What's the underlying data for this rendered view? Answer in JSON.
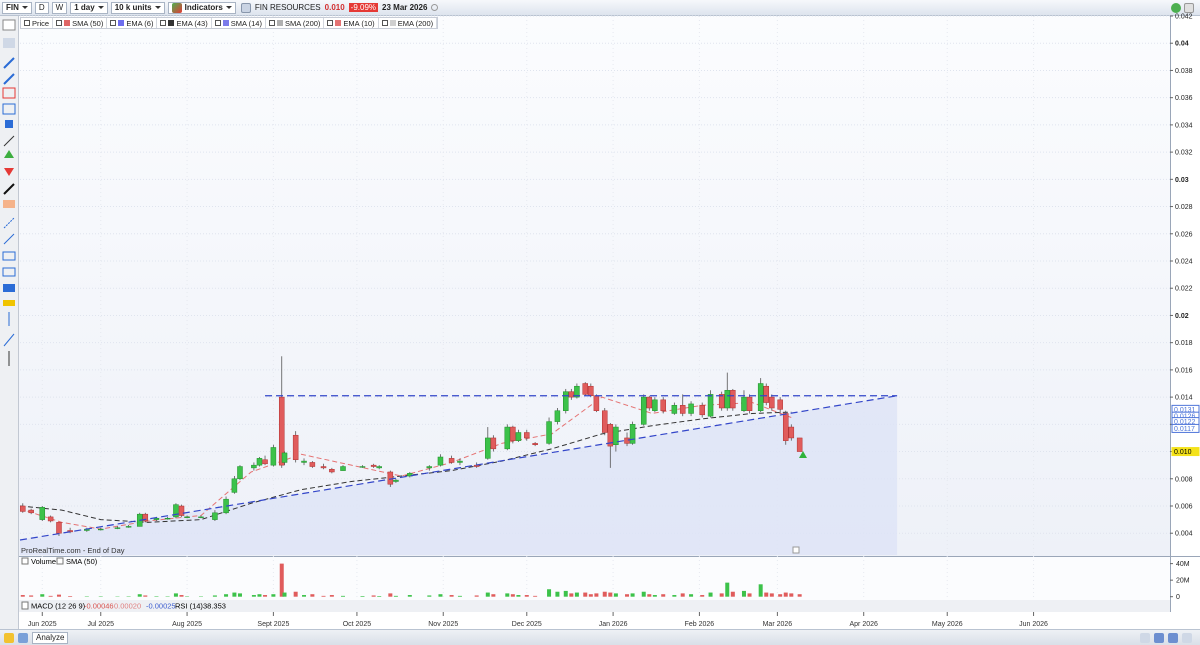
{
  "header": {
    "symbol": "FIN",
    "period_d": "D",
    "period_w": "W",
    "interval": "1 day",
    "units": "10 k units",
    "indicators_button": "Indicators",
    "name": "FIN RESOURCES",
    "price": "0.010",
    "change": "-9.09%",
    "date": "23 Mar 2026"
  },
  "watermark": "ProRealTime.com - End of Day",
  "volume_panel": {
    "title": "Volume",
    "indicator": "SMA (50)"
  },
  "indicator_bar": {
    "macd": "MACD (12 26 9)",
    "macd_values": [
      "-0.00046",
      "0.00020",
      "-0.00025"
    ],
    "rsi": "RSI (14)",
    "rsi_value": "38.353"
  },
  "footer": {
    "analyze": "Analyze"
  },
  "chart_data": {
    "type": "candlestick",
    "legend_price": "Price",
    "up_color": "#3cc24a",
    "down_color": "#e05c5c",
    "grid": true,
    "x": [
      "2025-06-17",
      "2025-06-20",
      "2025-06-24",
      "2025-06-27",
      "2025-06-30",
      "2025-07-04",
      "2025-07-10",
      "2025-07-15",
      "2025-07-21",
      "2025-07-25",
      "2025-07-29",
      "2025-07-31",
      "2025-08-04",
      "2025-08-08",
      "2025-08-11",
      "2025-08-13",
      "2025-08-15",
      "2025-08-20",
      "2025-08-25",
      "2025-08-29",
      "2025-09-01",
      "2025-09-03",
      "2025-09-08",
      "2025-09-10",
      "2025-09-12",
      "2025-09-15",
      "2025-09-18",
      "2025-09-19",
      "2025-09-23",
      "2025-09-26",
      "2025-09-29",
      "2025-10-03",
      "2025-10-06",
      "2025-10-10",
      "2025-10-17",
      "2025-10-21",
      "2025-10-23",
      "2025-10-27",
      "2025-10-29",
      "2025-11-03",
      "2025-11-10",
      "2025-11-14",
      "2025-11-18",
      "2025-11-21",
      "2025-11-27",
      "2025-12-01",
      "2025-12-03",
      "2025-12-08",
      "2025-12-10",
      "2025-12-12",
      "2025-12-15",
      "2025-12-18",
      "2025-12-23",
      "2025-12-26",
      "2025-12-29",
      "2025-12-31",
      "2026-01-02",
      "2026-01-05",
      "2026-01-07",
      "2026-01-09",
      "2026-01-12",
      "2026-01-14",
      "2026-01-16",
      "2026-01-20",
      "2026-01-22",
      "2026-01-26",
      "2026-01-28",
      "2026-01-30",
      "2026-02-02",
      "2026-02-06",
      "2026-02-09",
      "2026-02-12",
      "2026-02-16",
      "2026-02-19",
      "2026-02-23",
      "2026-02-25",
      "2026-02-27",
      "2026-03-03",
      "2026-03-05",
      "2026-03-09",
      "2026-03-11",
      "2026-03-13",
      "2026-03-16",
      "2026-03-18",
      "2026-03-20",
      "2026-03-23"
    ],
    "open": [
      0.006,
      0.0057,
      0.005,
      0.0052,
      0.0048,
      0.0042,
      0.0042,
      0.0043,
      0.0044,
      0.0045,
      0.0045,
      0.0054,
      0.005,
      0.0051,
      0.0052,
      0.006,
      0.0052,
      0.0052,
      0.005,
      0.0055,
      0.007,
      0.008,
      0.0088,
      0.009,
      0.0094,
      0.009,
      0.014,
      0.0092,
      0.0112,
      0.0092,
      0.0092,
      0.0089,
      0.0087,
      0.0086,
      0.0089,
      0.009,
      0.0088,
      0.0085,
      0.0078,
      0.0082,
      0.0088,
      0.009,
      0.0095,
      0.0092,
      0.009,
      0.0095,
      0.011,
      0.0102,
      0.0118,
      0.0108,
      0.0114,
      0.0106,
      0.0106,
      0.0122,
      0.013,
      0.0144,
      0.014,
      0.015,
      0.0148,
      0.0141,
      0.013,
      0.012,
      0.0105,
      0.011,
      0.0106,
      0.012,
      0.014,
      0.013,
      0.0138,
      0.0128,
      0.0134,
      0.0128,
      0.0134,
      0.0126,
      0.0142,
      0.0132,
      0.0145,
      0.013,
      0.014,
      0.013,
      0.0148,
      0.014,
      0.0138,
      0.0128,
      0.0118,
      0.011
    ],
    "high": [
      0.0062,
      0.0058,
      0.006,
      0.0053,
      0.0048,
      0.0044,
      0.0044,
      0.0044,
      0.0045,
      0.0046,
      0.0055,
      0.0055,
      0.0052,
      0.0052,
      0.0062,
      0.0061,
      0.0053,
      0.0053,
      0.0057,
      0.0067,
      0.0082,
      0.009,
      0.0092,
      0.0096,
      0.0097,
      0.0105,
      0.017,
      0.01,
      0.0115,
      0.0095,
      0.0093,
      0.0091,
      0.0088,
      0.009,
      0.009,
      0.0091,
      0.009,
      0.0086,
      0.008,
      0.0085,
      0.009,
      0.0098,
      0.0097,
      0.0095,
      0.0092,
      0.0118,
      0.0112,
      0.012,
      0.0119,
      0.0116,
      0.0116,
      0.0107,
      0.0125,
      0.0132,
      0.0146,
      0.0146,
      0.015,
      0.0151,
      0.015,
      0.0142,
      0.0132,
      0.0121,
      0.012,
      0.0114,
      0.0122,
      0.0142,
      0.0141,
      0.014,
      0.014,
      0.0136,
      0.0142,
      0.0137,
      0.0136,
      0.0145,
      0.0144,
      0.0158,
      0.0146,
      0.0145,
      0.0142,
      0.0154,
      0.015,
      0.0142,
      0.014,
      0.013,
      0.012,
      0.011
    ],
    "low": [
      0.0055,
      0.0054,
      0.0049,
      0.0048,
      0.0038,
      0.004,
      0.0041,
      0.0042,
      0.0043,
      0.0044,
      0.0045,
      0.0048,
      0.0049,
      0.005,
      0.0051,
      0.0052,
      0.0051,
      0.0051,
      0.0049,
      0.0054,
      0.0069,
      0.0079,
      0.0086,
      0.0089,
      0.009,
      0.0089,
      0.0088,
      0.009,
      0.0092,
      0.009,
      0.0088,
      0.0087,
      0.0084,
      0.0086,
      0.0088,
      0.0088,
      0.0087,
      0.0074,
      0.0077,
      0.0081,
      0.0086,
      0.0089,
      0.0091,
      0.009,
      0.0088,
      0.0094,
      0.01,
      0.0101,
      0.0106,
      0.0107,
      0.0108,
      0.0104,
      0.0105,
      0.012,
      0.0128,
      0.0138,
      0.0139,
      0.0141,
      0.014,
      0.0129,
      0.0112,
      0.0088,
      0.01,
      0.0104,
      0.0105,
      0.0119,
      0.013,
      0.0129,
      0.0128,
      0.0127,
      0.0126,
      0.0126,
      0.0125,
      0.0125,
      0.013,
      0.013,
      0.013,
      0.0129,
      0.0128,
      0.0129,
      0.0134,
      0.013,
      0.0128,
      0.0105,
      0.0108,
      0.01
    ],
    "close": [
      0.0056,
      0.0055,
      0.0059,
      0.0049,
      0.004,
      0.0041,
      0.0043,
      0.0043,
      0.0044,
      0.0045,
      0.0054,
      0.0049,
      0.0051,
      0.0051,
      0.0061,
      0.0053,
      0.0052,
      0.0052,
      0.0055,
      0.0065,
      0.008,
      0.0089,
      0.009,
      0.0095,
      0.0091,
      0.0103,
      0.009,
      0.0099,
      0.0094,
      0.0093,
      0.0089,
      0.0088,
      0.0085,
      0.0089,
      0.0089,
      0.0089,
      0.0089,
      0.0076,
      0.0079,
      0.0084,
      0.0089,
      0.0096,
      0.0092,
      0.0093,
      0.0089,
      0.011,
      0.0102,
      0.0118,
      0.0108,
      0.0114,
      0.011,
      0.0105,
      0.0122,
      0.013,
      0.0144,
      0.014,
      0.0148,
      0.0142,
      0.0141,
      0.013,
      0.0114,
      0.0104,
      0.0118,
      0.0106,
      0.012,
      0.014,
      0.0132,
      0.0138,
      0.013,
      0.0134,
      0.0128,
      0.0135,
      0.0127,
      0.0142,
      0.0132,
      0.0145,
      0.0132,
      0.014,
      0.013,
      0.015,
      0.0136,
      0.0132,
      0.0131,
      0.0108,
      0.011,
      0.01
    ],
    "volume": [
      2000000,
      1500000,
      3000000,
      1000000,
      2500000,
      800000,
      500000,
      500000,
      400000,
      500000,
      3000000,
      1500000,
      600000,
      500000,
      4000000,
      2000000,
      500000,
      500000,
      1500000,
      3000000,
      5000000,
      4000000,
      2000000,
      3000000,
      2000000,
      3000000,
      40000000,
      5000000,
      6000000,
      2000000,
      3000000,
      1000000,
      2000000,
      1000000,
      800000,
      1500000,
      800000,
      4000000,
      1000000,
      2000000,
      1500000,
      3000000,
      2000000,
      1000000,
      1500000,
      5000000,
      3000000,
      4000000,
      3000000,
      2000000,
      2000000,
      1000000,
      9000000,
      6000000,
      7000000,
      4000000,
      5000000,
      5000000,
      3000000,
      4000000,
      6000000,
      5000000,
      4000000,
      3000000,
      4000000,
      6000000,
      3000000,
      2000000,
      3000000,
      2000000,
      4000000,
      3000000,
      2000000,
      5000000,
      4000000,
      17000000,
      6000000,
      7000000,
      4000000,
      15000000,
      5000000,
      4000000,
      3000000,
      5000000,
      4000000,
      3000000
    ],
    "xlim": [
      "2025-06-16",
      "2026-08-03"
    ],
    "xticks": [
      {
        "value": "2025-06-24",
        "label": "Jun 2025"
      },
      {
        "value": "2025-07-15",
        "label": "Jul 2025"
      },
      {
        "value": "2025-08-15",
        "label": "Aug 2025"
      },
      {
        "value": "2025-09-15",
        "label": "Sept 2025"
      },
      {
        "value": "2025-10-15",
        "label": "Oct 2025"
      },
      {
        "value": "2025-11-15",
        "label": "Nov 2025"
      },
      {
        "value": "2025-12-15",
        "label": "Dec 2025"
      },
      {
        "value": "2026-01-15",
        "label": "Jan 2026"
      },
      {
        "value": "2026-02-15",
        "label": "Feb 2026"
      },
      {
        "value": "2026-03-15",
        "label": "Mar 2026"
      },
      {
        "value": "2026-04-15",
        "label": "Apr 2026"
      },
      {
        "value": "2026-05-15",
        "label": "May 2026"
      },
      {
        "value": "2026-06-15",
        "label": "Jun 2026"
      }
    ],
    "ylim": [
      0.0024,
      0.042
    ],
    "yticks": [
      0.004,
      0.006,
      0.008,
      0.01,
      0.012,
      0.014,
      0.016,
      0.018,
      0.02,
      0.022,
      0.024,
      0.026,
      0.028,
      0.03,
      0.032,
      0.034,
      0.036,
      0.038,
      0.04,
      0.042
    ],
    "volume_ylim": [
      -4000000,
      48000000
    ],
    "volume_yticks": [
      0,
      {
        "value": 20000000,
        "label": "20M"
      },
      {
        "value": 40000000,
        "label": "40M"
      }
    ],
    "indicators": [
      {
        "name": "SMA (50)",
        "color": "#e06666"
      },
      {
        "name": "EMA (6)",
        "color": "#6d6dee"
      },
      {
        "name": "EMA (43)",
        "color": "#333333",
        "x": [
          "2025-06-16",
          "2025-07-01",
          "2025-07-15",
          "2025-08-01",
          "2025-08-20",
          "2025-09-07",
          "2025-09-25",
          "2025-10-13",
          "2025-10-31",
          "2025-11-18",
          "2025-12-06",
          "2025-12-24",
          "2026-01-11",
          "2026-01-29",
          "2026-02-16",
          "2026-03-06",
          "2026-03-20"
        ],
        "values": [
          0.006,
          0.0057,
          0.005,
          0.0048,
          0.005,
          0.0062,
          0.0072,
          0.0078,
          0.0082,
          0.0086,
          0.0093,
          0.0102,
          0.0113,
          0.0119,
          0.0124,
          0.0128,
          0.0129
        ]
      },
      {
        "name": "SMA (14)",
        "color": "#7b7bea"
      },
      {
        "name": "SMA (200)",
        "color": "#b0b0b0"
      },
      {
        "name": "EMA (10)",
        "color": "#e57373",
        "x": [
          "2025-06-16",
          "2025-07-01",
          "2025-07-15",
          "2025-08-01",
          "2025-08-20",
          "2025-09-07",
          "2025-09-25",
          "2025-10-13",
          "2025-10-31",
          "2025-11-18",
          "2025-12-06",
          "2025-12-24",
          "2026-01-11",
          "2026-01-29",
          "2026-02-16",
          "2026-03-06",
          "2026-03-20"
        ],
        "values": [
          0.0058,
          0.0048,
          0.0043,
          0.0049,
          0.0053,
          0.0085,
          0.0098,
          0.009,
          0.0082,
          0.0092,
          0.0106,
          0.0113,
          0.014,
          0.0128,
          0.0134,
          0.0136,
          0.0125
        ]
      },
      {
        "name": "EMA (200)",
        "color": "#cfcfcf"
      }
    ],
    "trendlines": [
      {
        "x": [
          "2025-09-12",
          "2026-04-27"
        ],
        "values": [
          0.0141,
          0.0141
        ],
        "color": "#3346c9"
      },
      {
        "x": [
          "2025-06-16",
          "2026-04-27"
        ],
        "values": [
          0.0035,
          0.0141
        ],
        "color": "#3346c9"
      }
    ],
    "price_markers": [
      {
        "value": 0.0131,
        "color": "#4d74d9"
      },
      {
        "value": 0.0126,
        "color": "#4d74d9"
      },
      {
        "value": 0.0122,
        "color": "#4d74d9"
      },
      {
        "value": 0.0117,
        "color": "#4d74d9"
      },
      {
        "value": 0.01,
        "label": "0.010",
        "color": "#f4e21a"
      }
    ]
  }
}
